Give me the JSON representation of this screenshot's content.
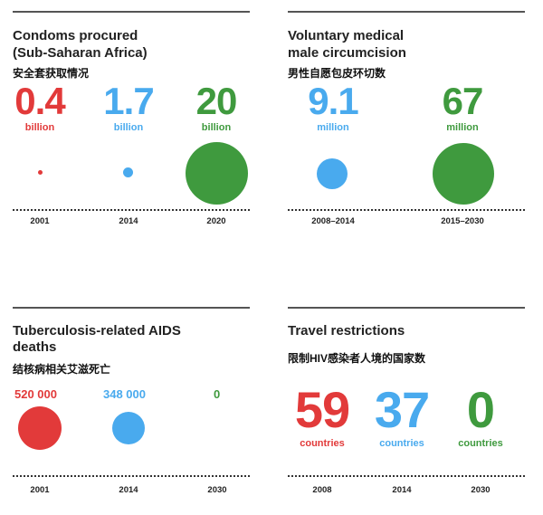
{
  "colors": {
    "red": "#e23a3a",
    "blue": "#49aaee",
    "green": "#3f9a3e"
  },
  "chart_data": [
    {
      "type": "bubble",
      "title": "Condoms procured\n(Sub-Saharan Africa)",
      "title_line1": "Condoms procured",
      "title_line2": "(Sub-Saharan Africa)",
      "subtitle_cn": "安全套获取情况",
      "categories": [
        "2001",
        "2014",
        "2020"
      ],
      "values": [
        0.4,
        1.7,
        20
      ],
      "labels": [
        "0.4",
        "1.7",
        "20"
      ],
      "unit": "billion",
      "colors": [
        "red",
        "blue",
        "green"
      ]
    },
    {
      "type": "bubble",
      "title": "Voluntary medical\nmale circumcision",
      "title_line1": "Voluntary medical",
      "title_line2": "male circumcision",
      "subtitle_cn": "男性自愿包皮环切数",
      "categories": [
        "2008–2014",
        "2015–2030"
      ],
      "values": [
        9.1,
        67
      ],
      "labels": [
        "9.1",
        "67"
      ],
      "unit": "million",
      "colors": [
        "blue",
        "green"
      ]
    },
    {
      "type": "bubble",
      "title": "Tuberculosis-related AIDS\ndeaths",
      "title_line1": "Tuberculosis-related AIDS",
      "title_line2": "deaths",
      "subtitle_cn": "结核病相关艾滋死亡",
      "categories": [
        "2001",
        "2014",
        "2030"
      ],
      "values": [
        520000,
        348000,
        0
      ],
      "labels": [
        "520 000",
        "348 000",
        "0"
      ],
      "colors": [
        "red",
        "blue",
        "green"
      ]
    },
    {
      "type": "table",
      "title": "Travel restrictions",
      "subtitle_cn": "限制HIV感染者人境的国家数",
      "categories": [
        "2008",
        "2014",
        "2030"
      ],
      "values": [
        59,
        37,
        0
      ],
      "labels": [
        "59",
        "37",
        "0"
      ],
      "unit": "countries",
      "colors": [
        "red",
        "blue",
        "green"
      ]
    }
  ]
}
